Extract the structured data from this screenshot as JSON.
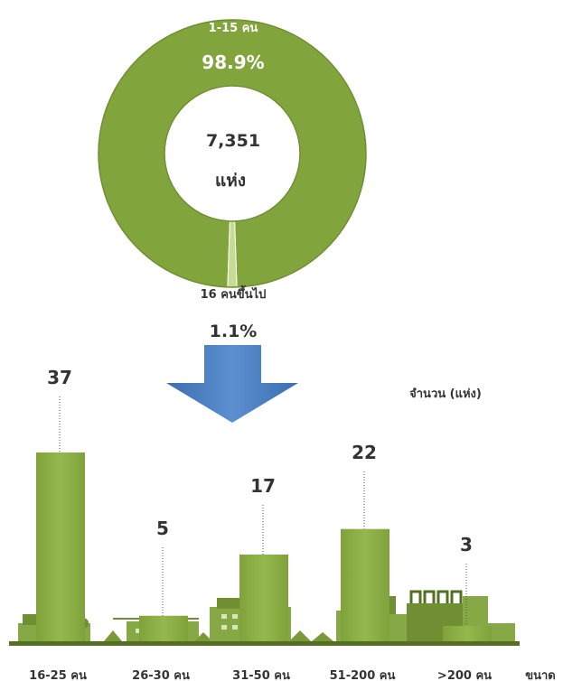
{
  "chart_data": [
    {
      "type": "pie",
      "style": "donut",
      "slices": [
        {
          "label": "1-15 คน",
          "value": 98.9,
          "value_label": "98.9%",
          "color": "#82A43C"
        },
        {
          "label": "16 คนขึ้นไป",
          "value": 1.1,
          "value_label": "1.1%",
          "color": "#C6DB94"
        }
      ],
      "center_value": "7,351",
      "center_unit": "แห่ง"
    },
    {
      "type": "bar",
      "ylabel": "จำนวน (แห่ง)",
      "xlabel": "ขนาด",
      "categories": [
        "16-25 คน",
        "26-30 คน",
        "31-50 คน",
        "51-200 คน",
        ">200 คน"
      ],
      "values": [
        37,
        5,
        17,
        22,
        3
      ],
      "ylim": [
        0,
        40
      ],
      "bar_color": "#82A43C"
    }
  ],
  "colors": {
    "donut_main": "#82A43C",
    "donut_small": "#C6DB94",
    "arrow": "#4F81BD",
    "bar": "#82A43C",
    "buildings": "#7A9A3A"
  }
}
